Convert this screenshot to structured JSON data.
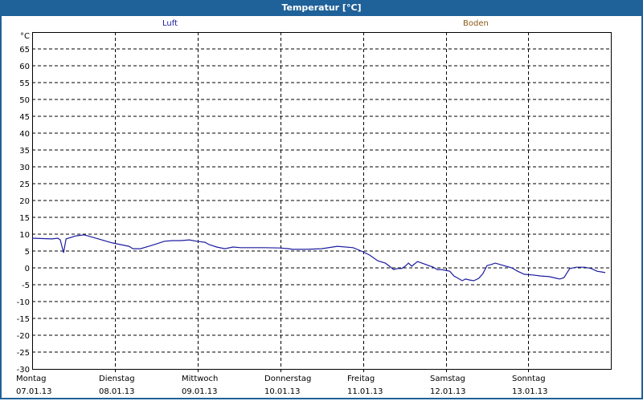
{
  "window": {
    "title": "Temperatur [°C]"
  },
  "legend": {
    "luft": "Luft",
    "boden": "Boden"
  },
  "colors": {
    "title_bar": "#1f6199",
    "luft": "#1c1ca0",
    "boden": "#8a5a16"
  },
  "chart_data": {
    "type": "line",
    "title": "Temperatur [°C]",
    "ylabel": "°C",
    "xlabel": "",
    "ylim": [
      -30,
      70
    ],
    "yticks": [
      65,
      60,
      55,
      50,
      45,
      40,
      35,
      30,
      25,
      20,
      15,
      10,
      5,
      0,
      -5,
      -10,
      -15,
      -20,
      -25,
      -30
    ],
    "grid": true,
    "legend": [
      "Luft",
      "Boden"
    ],
    "legend_position": "top",
    "x_days": [
      {
        "day": "Montag",
        "date": "07.01.13"
      },
      {
        "day": "Dienstag",
        "date": "08.01.13"
      },
      {
        "day": "Mittwoch",
        "date": "09.01.13"
      },
      {
        "day": "Donnerstag",
        "date": "10.01.13"
      },
      {
        "day": "Freitag",
        "date": "11.01.13"
      },
      {
        "day": "Samstag",
        "date": "12.01.13"
      },
      {
        "day": "Sonntag",
        "date": "13.01.13"
      }
    ],
    "series": [
      {
        "name": "Luft",
        "color": "#1c1ca0",
        "x_days": [
          0,
          0.24,
          0.31,
          0.34,
          0.38,
          0.41,
          0.53,
          0.63,
          0.97,
          1.07,
          1.17,
          1.22,
          1.31,
          1.41,
          1.5,
          1.6,
          1.7,
          1.8,
          1.9,
          1.99,
          2.09,
          2.14,
          2.23,
          2.33,
          2.43,
          2.52,
          2.81,
          3.0,
          3.1,
          3.15,
          3.3,
          3.5,
          3.69,
          3.88,
          3.98,
          4.08,
          4.18,
          4.27,
          4.32,
          4.37,
          4.42,
          4.47,
          4.51,
          4.55,
          4.59,
          4.66,
          4.76,
          4.85,
          4.9,
          4.95,
          5.05,
          5.1,
          5.15,
          5.2,
          5.24,
          5.29,
          5.34,
          5.4,
          5.45,
          5.5,
          5.55,
          5.6,
          5.7,
          5.8,
          5.87,
          5.95,
          6.05,
          6.15,
          6.25,
          6.34,
          6.38,
          6.43,
          6.5,
          6.58,
          6.68,
          6.76,
          6.83,
          6.88,
          6.93
        ],
        "values": [
          8.8,
          8.6,
          8.8,
          8.3,
          4.5,
          8.6,
          9.5,
          9.8,
          7.4,
          6.9,
          6.4,
          5.7,
          5.7,
          6.4,
          7.1,
          7.9,
          8.1,
          8.1,
          8.3,
          7.9,
          7.6,
          6.9,
          6.2,
          5.7,
          6.2,
          6.0,
          6.0,
          5.9,
          5.7,
          5.5,
          5.5,
          5.7,
          6.4,
          6.0,
          5.0,
          3.8,
          2.1,
          1.4,
          0.5,
          -0.5,
          -0.2,
          -0.2,
          0.5,
          1.4,
          0.5,
          1.9,
          1.0,
          0.2,
          -0.5,
          -0.5,
          -1.0,
          -2.4,
          -3.1,
          -3.8,
          -3.3,
          -3.6,
          -3.8,
          -3.1,
          -1.7,
          0.7,
          1.0,
          1.4,
          0.7,
          0,
          -1.0,
          -1.9,
          -2.1,
          -2.4,
          -2.6,
          -3.1,
          -3.3,
          -2.9,
          -0.2,
          0.2,
          0.2,
          -0.2,
          -1.0,
          -1.2,
          -1.4
        ]
      },
      {
        "name": "Boden",
        "color": "#8a5a16",
        "x_days": [],
        "values": []
      }
    ]
  }
}
